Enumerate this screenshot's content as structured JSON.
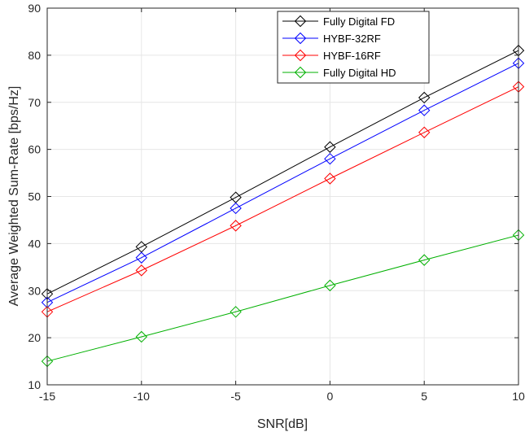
{
  "chart_data": {
    "type": "line",
    "title": "",
    "xlabel": "SNR[dB]",
    "ylabel": "Average Weighted Sum-Rate [bps/Hz]",
    "xlim": [
      -15,
      10
    ],
    "ylim": [
      10,
      90
    ],
    "xticks": [
      -15,
      -10,
      -5,
      0,
      5,
      10
    ],
    "yticks": [
      10,
      20,
      30,
      40,
      50,
      60,
      70,
      80,
      90
    ],
    "grid": true,
    "legend_position": "top-right",
    "marker": "diamond",
    "x": [
      -15,
      -10,
      -5,
      0,
      5,
      10
    ],
    "series": [
      {
        "name": "Fully Digital FD",
        "color": "#000000",
        "values": [
          29.3,
          39.3,
          49.8,
          60.5,
          71.0,
          81.0
        ]
      },
      {
        "name": "HYBF-32RF",
        "color": "#0000ff",
        "values": [
          27.5,
          37.0,
          47.5,
          58.0,
          68.3,
          78.3
        ]
      },
      {
        "name": "HYBF-16RF",
        "color": "#ff0000",
        "values": [
          25.5,
          34.3,
          43.8,
          53.8,
          63.6,
          73.3
        ]
      },
      {
        "name": "Fully Digital HD",
        "color": "#00b000",
        "values": [
          15.0,
          20.2,
          25.5,
          31.1,
          36.5,
          41.8
        ]
      }
    ]
  }
}
